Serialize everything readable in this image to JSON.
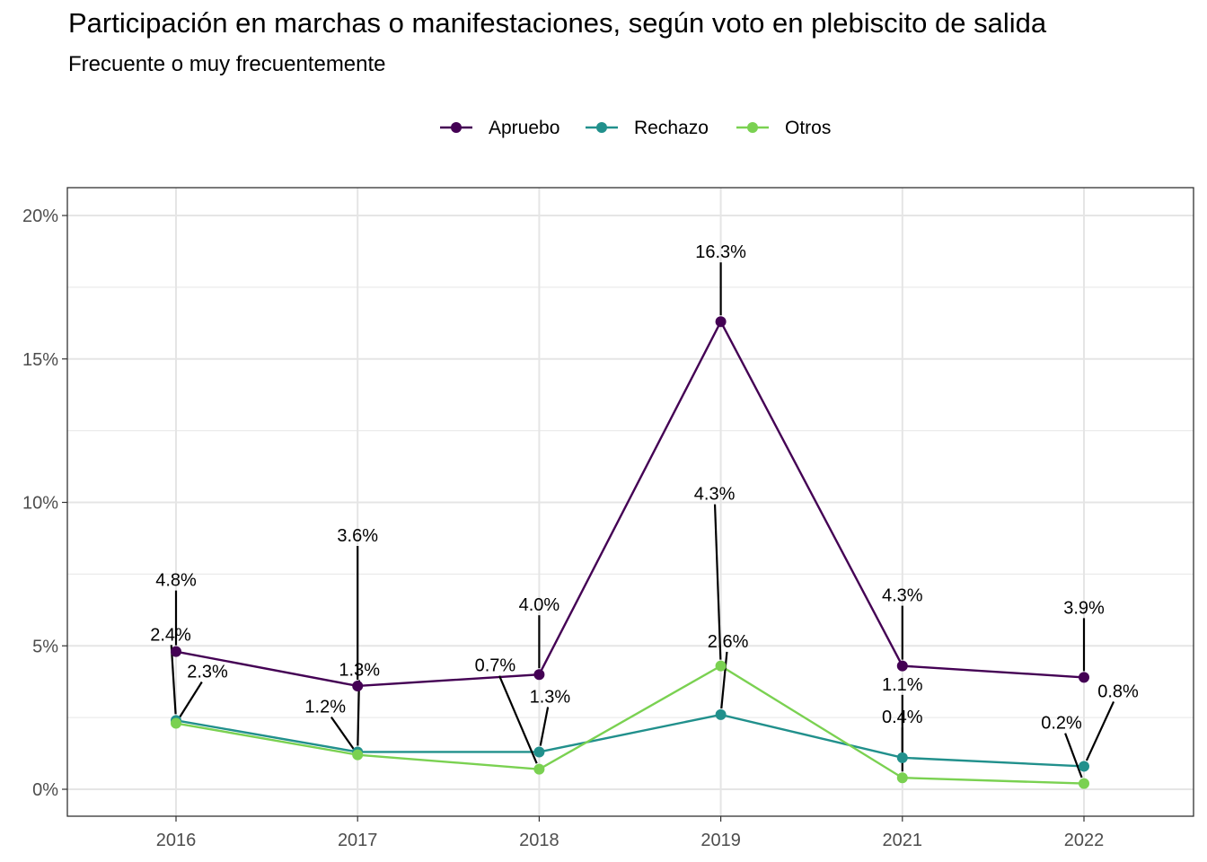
{
  "chart_data": {
    "type": "line",
    "title": "Participación en marchas o manifestaciones, según voto en plebiscito de salida",
    "subtitle": "Frecuente o muy frecuentemente",
    "xlabel": "",
    "ylabel": "",
    "categories": [
      "2016",
      "2017",
      "2018",
      "2019",
      "2021",
      "2022"
    ],
    "ylim": [
      0,
      20
    ],
    "y_ticks": [
      0,
      5,
      10,
      15,
      20
    ],
    "y_tick_labels": [
      "0%",
      "5%",
      "10%",
      "15%",
      "20%"
    ],
    "grid": true,
    "legend_position": "top",
    "series": [
      {
        "name": "Apruebo",
        "color": "#440154",
        "values": [
          4.8,
          3.6,
          4.0,
          16.3,
          4.3,
          3.9
        ],
        "labels": [
          "4.8%",
          "3.6%",
          "4.0%",
          "16.3%",
          "4.3%",
          "3.9%"
        ]
      },
      {
        "name": "Rechazo",
        "color": "#21908C",
        "values": [
          2.4,
          1.3,
          1.3,
          2.6,
          1.1,
          0.8
        ],
        "labels": [
          "2.4%",
          "1.3%",
          "1.3%",
          "2.6%",
          "1.1%",
          "0.8%"
        ]
      },
      {
        "name": "Otros",
        "color": "#7AD151",
        "values": [
          2.3,
          1.2,
          0.7,
          4.3,
          0.4,
          0.2
        ],
        "labels": [
          "2.3%",
          "1.2%",
          "0.7%",
          "4.3%",
          "0.4%",
          "0.2%"
        ]
      }
    ]
  }
}
